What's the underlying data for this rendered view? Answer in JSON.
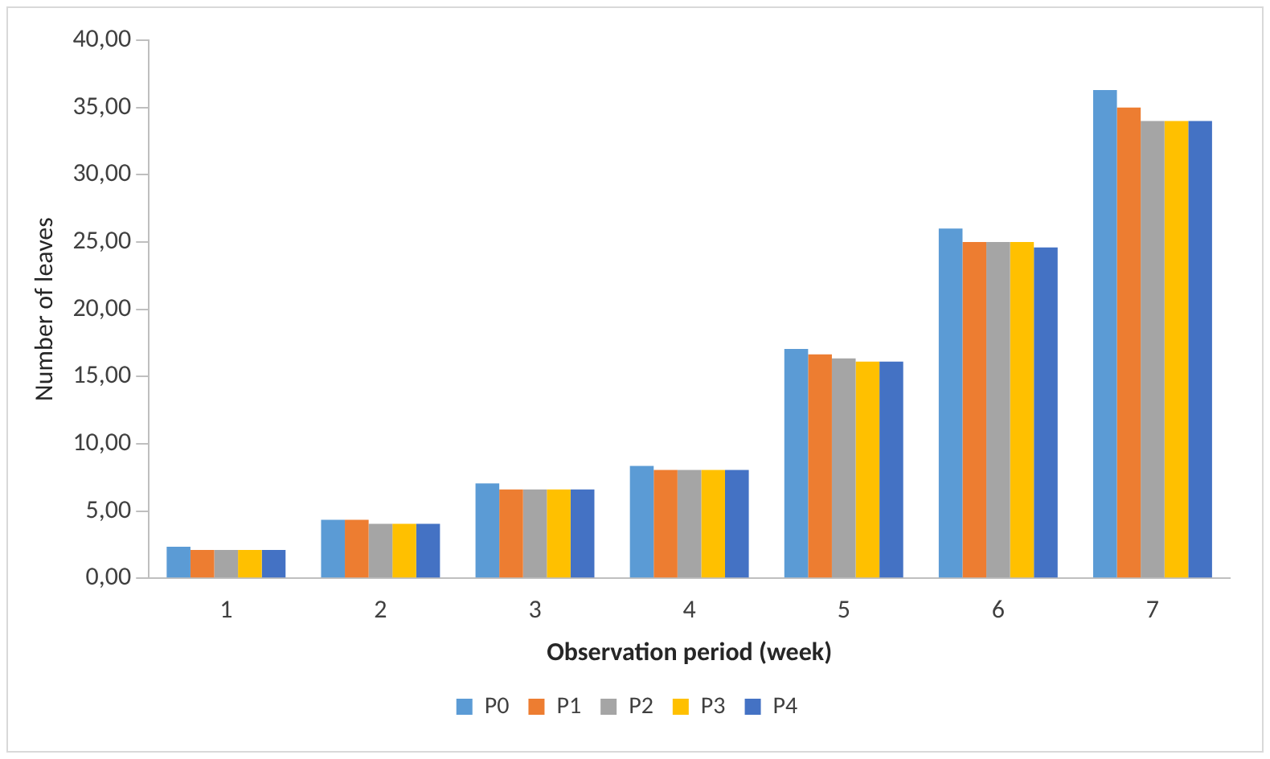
{
  "chart_data": {
    "type": "bar",
    "xlabel": "Observation period (week)",
    "ylabel": "Number of leaves",
    "categories": [
      "1",
      "2",
      "3",
      "4",
      "5",
      "6",
      "7"
    ],
    "series": [
      {
        "name": "P0",
        "color": "#5b9bd5",
        "values": [
          2.35,
          4.35,
          7.05,
          8.35,
          17.05,
          26.0,
          36.3
        ]
      },
      {
        "name": "P1",
        "color": "#ed7d31",
        "values": [
          2.1,
          4.35,
          6.6,
          8.05,
          16.65,
          25.0,
          35.0
        ]
      },
      {
        "name": "P2",
        "color": "#a5a5a5",
        "values": [
          2.1,
          4.05,
          6.6,
          8.05,
          16.35,
          25.0,
          34.0
        ]
      },
      {
        "name": "P3",
        "color": "#ffc000",
        "values": [
          2.1,
          4.05,
          6.6,
          8.05,
          16.1,
          25.0,
          34.0
        ]
      },
      {
        "name": "P4",
        "color": "#4472c4",
        "values": [
          2.1,
          4.05,
          6.6,
          8.05,
          16.1,
          24.6,
          34.0
        ]
      }
    ],
    "ylim": [
      0,
      40
    ],
    "yticks": [
      {
        "value": 0,
        "label": "0,00"
      },
      {
        "value": 5,
        "label": "5,00"
      },
      {
        "value": 10,
        "label": "10,00"
      },
      {
        "value": 15,
        "label": "15,00"
      },
      {
        "value": 20,
        "label": "20,00"
      },
      {
        "value": 25,
        "label": "25,00"
      },
      {
        "value": 30,
        "label": "30,00"
      },
      {
        "value": 35,
        "label": "35,00"
      },
      {
        "value": 40,
        "label": "40,00"
      }
    ],
    "grid": false,
    "legend": "bottom"
  }
}
